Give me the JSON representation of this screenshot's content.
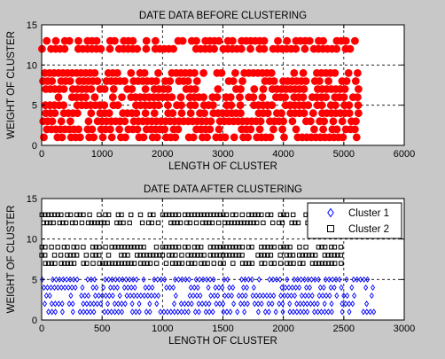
{
  "figure": {
    "background": "#c8c8c8"
  },
  "chart_data": [
    {
      "type": "scatter",
      "title": "DATE DATA BEFORE CLUSTERING",
      "xlabel": "LENGTH OF CLUSTER",
      "ylabel": "WEIGHT OF CLUSTER",
      "xlim": [
        0,
        6000
      ],
      "ylim": [
        0,
        15
      ],
      "xticks": [
        0,
        1000,
        2000,
        3000,
        4000,
        5000,
        6000
      ],
      "yticks": [
        0,
        5,
        10,
        15
      ],
      "grid": true,
      "legend": null,
      "series": [
        {
          "marker": "filled-circle",
          "color": "#ff0000",
          "x_range": [
            0,
            5250
          ],
          "y_values": [
            1,
            2,
            3,
            4,
            5,
            6,
            7,
            8,
            9,
            12,
            13
          ]
        }
      ]
    },
    {
      "type": "scatter",
      "title": "DATE DATA AFTER CLUSTERING",
      "xlabel": "LENGTH OF CLUSTER",
      "ylabel": "WEIGHT OF CLUSTER",
      "xlim": [
        0,
        3000
      ],
      "ylim": [
        0,
        15
      ],
      "xticks": [
        0,
        500,
        1000,
        1500,
        2000,
        2500,
        3000
      ],
      "yticks": [
        0,
        5,
        10,
        15
      ],
      "grid": true,
      "legend": {
        "position": "top-right"
      },
      "series": [
        {
          "name": "Cluster 1",
          "marker": "diamond",
          "color": "#0000ff",
          "x_range": [
            0,
            2750
          ],
          "y_values": [
            1,
            2,
            3,
            4,
            5
          ]
        },
        {
          "name": "Cluster 2",
          "marker": "square",
          "color": "#000000",
          "x_range": [
            0,
            2500
          ],
          "y_values": [
            7,
            8,
            9,
            12,
            13
          ]
        }
      ]
    }
  ]
}
